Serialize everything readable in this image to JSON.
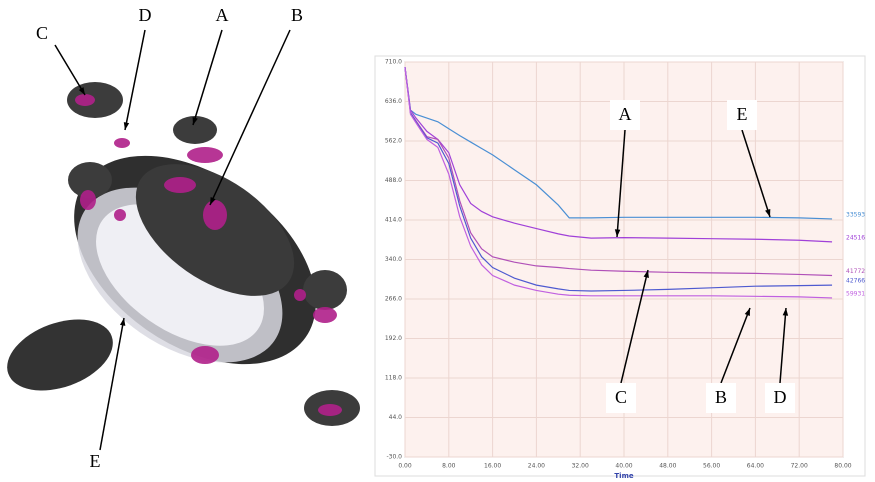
{
  "figure_labels": [
    "C",
    "D",
    "A",
    "B",
    "E"
  ],
  "chart_data": {
    "type": "line",
    "x_label": "Time",
    "x": [
      0,
      1,
      2,
      4,
      6,
      8,
      10,
      12,
      14,
      16,
      20,
      24,
      28,
      30,
      34,
      40,
      48,
      56,
      64,
      72,
      78
    ],
    "xlim": [
      0,
      80
    ],
    "xticks": [
      {
        "value": 0,
        "label": "0.00"
      },
      {
        "value": 8,
        "label": "8.00"
      },
      {
        "value": 16,
        "label": "16.00"
      },
      {
        "value": 24,
        "label": "24.00"
      },
      {
        "value": 32,
        "label": "32.00"
      },
      {
        "value": 40,
        "label": "40.00"
      },
      {
        "value": 48,
        "label": "48.00"
      },
      {
        "value": 56,
        "label": "56.00"
      },
      {
        "value": 64,
        "label": "64.00"
      },
      {
        "value": 72,
        "label": "72.00"
      },
      {
        "value": 80,
        "label": "80.00"
      }
    ],
    "ylim": [
      -30,
      710
    ],
    "yticks": [
      {
        "value": -30,
        "label": "-30.0"
      },
      {
        "value": 44,
        "label": "44.0"
      },
      {
        "value": 118,
        "label": "118.0"
      },
      {
        "value": 192,
        "label": "192.0"
      },
      {
        "value": 266,
        "label": "266.0"
      },
      {
        "value": 340,
        "label": "340.0"
      },
      {
        "value": 414,
        "label": "414.0"
      },
      {
        "value": 488,
        "label": "488.0"
      },
      {
        "value": 562,
        "label": "562.0"
      },
      {
        "value": 636,
        "label": "636.0"
      },
      {
        "value": 710,
        "label": "710.0"
      }
    ],
    "grid": true,
    "series": [
      {
        "name": "33593",
        "color": "#4a8fd4",
        "values": [
          700,
          620,
          612,
          605,
          598,
          585,
          572,
          560,
          548,
          536,
          508,
          480,
          442,
          418,
          418,
          419,
          419,
          419,
          419,
          418,
          416
        ]
      },
      {
        "name": "24516",
        "color": "#a040d8",
        "values": [
          700,
          620,
          605,
          580,
          565,
          540,
          480,
          445,
          430,
          420,
          408,
          398,
          388,
          384,
          380,
          381,
          380,
          379,
          378,
          376,
          373
        ]
      },
      {
        "name": "41772",
        "color": "#b050b8",
        "values": [
          700,
          615,
          600,
          570,
          565,
          530,
          450,
          390,
          360,
          345,
          335,
          328,
          325,
          323,
          320,
          318,
          316,
          315,
          314,
          312,
          310
        ]
      },
      {
        "name": "42766",
        "color": "#4e5ad0",
        "values": [
          700,
          615,
          598,
          568,
          558,
          520,
          440,
          380,
          345,
          325,
          305,
          292,
          285,
          282,
          281,
          282,
          284,
          287,
          290,
          291,
          292
        ]
      },
      {
        "name": "59931",
        "color": "#c060e0",
        "values": [
          700,
          612,
          596,
          565,
          550,
          500,
          420,
          365,
          330,
          310,
          292,
          282,
          275,
          273,
          272,
          272,
          272,
          272,
          271,
          270,
          268
        ]
      }
    ],
    "annotations": [
      "A",
      "E",
      "C",
      "B",
      "D"
    ]
  }
}
